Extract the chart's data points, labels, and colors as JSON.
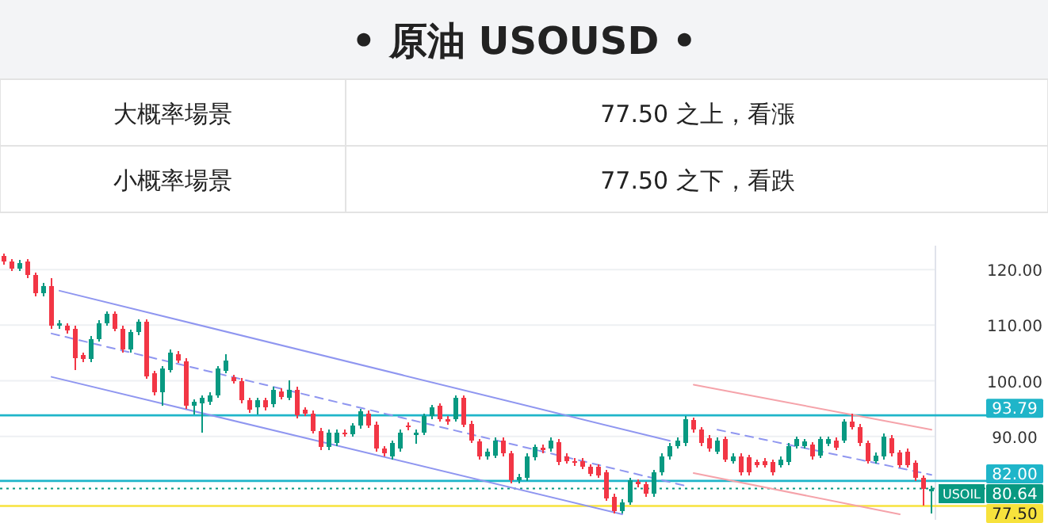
{
  "chart_data": {
    "type": "candlestick",
    "title": "• 原油 USOUSD •",
    "annotations": [
      "大概率場景",
      "77.50 之上，看漲",
      "小概率場景",
      "77.50 之下，看跌"
    ],
    "categories": [
      null,
      null,
      null,
      null,
      null,
      null,
      null,
      null,
      null,
      null,
      null,
      null,
      null,
      null,
      null,
      null,
      null,
      null,
      null,
      null,
      null,
      null,
      null,
      null,
      null,
      null,
      null,
      null,
      null,
      null,
      null,
      null,
      null,
      null,
      null,
      null,
      null,
      null,
      null,
      null,
      null,
      null,
      null,
      null,
      null,
      null,
      null,
      null,
      null,
      null,
      null,
      null,
      null,
      null,
      null,
      null,
      null,
      null,
      null,
      null,
      null,
      null,
      null,
      null,
      null,
      null,
      null,
      null,
      null,
      null,
      null,
      null,
      null,
      null,
      null,
      null,
      null,
      null,
      null,
      null,
      null,
      null,
      null,
      null,
      null,
      null,
      null,
      null,
      null,
      null,
      null,
      null,
      null,
      null,
      null,
      null,
      null,
      null,
      null,
      null,
      null,
      null,
      null,
      null,
      null,
      null,
      null,
      null,
      null,
      null,
      null,
      null,
      null,
      null,
      null,
      null,
      null,
      null
    ],
    "ohlc": [
      [
        122.4,
        122.9,
        120.9,
        121.4
      ],
      [
        121.4,
        121.9,
        119.7,
        120.2
      ],
      [
        120.2,
        121.7,
        119.7,
        121.2
      ],
      [
        121.4,
        121.9,
        118.5,
        119.0
      ],
      [
        119.0,
        119.5,
        115.2,
        115.7
      ],
      [
        115.7,
        117.6,
        115.2,
        117.1
      ],
      [
        117.1,
        118.4,
        109.4,
        109.9
      ],
      [
        109.9,
        110.9,
        109.4,
        110.4
      ],
      [
        109.9,
        110.4,
        108.5,
        109.0
      ],
      [
        109.4,
        109.9,
        102.0,
        104.1
      ],
      [
        104.6,
        105.1,
        103.4,
        103.9
      ],
      [
        103.9,
        108.0,
        103.4,
        107.5
      ],
      [
        107.5,
        110.9,
        107.0,
        110.4
      ],
      [
        110.4,
        112.5,
        109.9,
        112.0
      ],
      [
        112.0,
        112.5,
        108.9,
        109.4
      ],
      [
        109.4,
        109.9,
        105.1,
        105.6
      ],
      [
        105.6,
        109.2,
        105.1,
        108.7
      ],
      [
        108.7,
        111.1,
        108.2,
        110.6
      ],
      [
        110.6,
        111.1,
        100.3,
        100.8
      ],
      [
        101.3,
        101.8,
        97.4,
        97.9
      ],
      [
        97.9,
        102.7,
        95.5,
        102.2
      ],
      [
        102.0,
        105.6,
        101.5,
        105.1
      ],
      [
        104.8,
        105.3,
        103.2,
        103.7
      ],
      [
        103.5,
        104.0,
        95.0,
        95.5
      ],
      [
        95.5,
        96.7,
        94.0,
        96.2
      ],
      [
        96.0,
        97.4,
        90.7,
        96.9
      ],
      [
        96.2,
        97.9,
        95.7,
        97.4
      ],
      [
        97.4,
        102.7,
        96.9,
        102.2
      ],
      [
        101.8,
        104.8,
        101.3,
        103.7
      ],
      [
        100.6,
        101.1,
        99.5,
        100.0
      ],
      [
        100.0,
        100.5,
        96.0,
        96.5
      ],
      [
        96.5,
        97.0,
        94.3,
        94.8
      ],
      [
        95.2,
        97.0,
        94.0,
        96.5
      ],
      [
        96.5,
        97.0,
        94.7,
        95.2
      ],
      [
        95.8,
        98.9,
        95.3,
        98.4
      ],
      [
        98.1,
        98.6,
        96.6,
        97.1
      ],
      [
        97.0,
        100.1,
        96.5,
        98.4
      ],
      [
        98.4,
        98.9,
        93.3,
        93.8
      ],
      [
        94.8,
        95.3,
        93.6,
        94.1
      ],
      [
        94.1,
        94.6,
        90.5,
        91.0
      ],
      [
        91.0,
        91.5,
        87.6,
        88.1
      ],
      [
        88.1,
        91.2,
        87.6,
        90.7
      ],
      [
        88.8,
        91.2,
        88.3,
        90.7
      ],
      [
        90.7,
        91.2,
        89.9,
        90.4
      ],
      [
        90.4,
        92.4,
        89.9,
        91.9
      ],
      [
        91.9,
        95.0,
        91.4,
        94.5
      ],
      [
        94.1,
        94.6,
        91.5,
        92.0
      ],
      [
        92.1,
        92.6,
        87.3,
        87.8
      ],
      [
        87.8,
        88.3,
        86.4,
        86.9
      ],
      [
        86.4,
        89.3,
        85.9,
        88.8
      ],
      [
        87.8,
        91.2,
        87.3,
        90.7
      ],
      [
        92.0,
        92.5,
        91.1,
        91.6
      ],
      [
        90.2,
        91.2,
        88.7,
        90.7
      ],
      [
        90.7,
        94.1,
        90.2,
        93.6
      ],
      [
        93.6,
        95.7,
        93.1,
        95.2
      ],
      [
        95.5,
        96.0,
        92.6,
        93.1
      ],
      [
        93.1,
        93.6,
        92.1,
        92.6
      ],
      [
        93.1,
        97.4,
        92.6,
        96.9
      ],
      [
        96.9,
        97.4,
        91.6,
        92.1
      ],
      [
        92.3,
        92.8,
        88.8,
        89.3
      ],
      [
        89.1,
        89.6,
        85.9,
        86.4
      ],
      [
        86.4,
        87.8,
        85.9,
        87.3
      ],
      [
        86.6,
        89.8,
        86.1,
        89.3
      ],
      [
        89.3,
        89.8,
        86.4,
        86.9
      ],
      [
        86.9,
        87.4,
        81.6,
        82.1
      ],
      [
        82.1,
        83.2,
        81.6,
        82.7
      ],
      [
        82.5,
        86.9,
        82.0,
        86.4
      ],
      [
        86.2,
        88.6,
        85.7,
        88.1
      ],
      [
        88.0,
        88.5,
        87.0,
        87.5
      ],
      [
        87.8,
        89.8,
        87.3,
        89.3
      ],
      [
        89.0,
        89.5,
        84.9,
        85.4
      ],
      [
        86.4,
        86.9,
        85.1,
        85.6
      ],
      [
        85.6,
        86.1,
        84.7,
        85.2
      ],
      [
        85.6,
        86.1,
        84.1,
        84.6
      ],
      [
        84.5,
        85.0,
        82.8,
        83.3
      ],
      [
        84.5,
        85.0,
        82.5,
        83.0
      ],
      [
        83.5,
        84.0,
        78.4,
        78.9
      ],
      [
        79.2,
        79.7,
        76.1,
        76.6
      ],
      [
        76.6,
        78.7,
        76.1,
        78.2
      ],
      [
        78.2,
        82.6,
        77.7,
        82.1
      ],
      [
        81.8,
        82.3,
        80.9,
        81.4
      ],
      [
        81.4,
        81.9,
        79.2,
        79.7
      ],
      [
        79.7,
        84.0,
        79.2,
        83.5
      ],
      [
        83.5,
        86.9,
        83.0,
        86.4
      ],
      [
        86.4,
        88.8,
        85.9,
        88.3
      ],
      [
        88.3,
        89.8,
        87.8,
        89.3
      ],
      [
        88.8,
        93.6,
        88.3,
        93.1
      ],
      [
        92.9,
        93.4,
        90.7,
        91.2
      ],
      [
        91.2,
        91.7,
        88.3,
        88.8
      ],
      [
        89.7,
        90.2,
        87.3,
        87.8
      ],
      [
        87.3,
        89.8,
        86.8,
        89.3
      ],
      [
        89.5,
        90.0,
        85.4,
        85.9
      ],
      [
        85.6,
        86.9,
        85.1,
        86.4
      ],
      [
        86.4,
        86.9,
        83.0,
        83.5
      ],
      [
        86.2,
        86.7,
        83.0,
        83.5
      ],
      [
        85.4,
        85.9,
        84.4,
        84.9
      ],
      [
        85.6,
        86.1,
        84.4,
        84.9
      ],
      [
        85.4,
        85.9,
        83.0,
        83.5
      ],
      [
        84.9,
        86.4,
        84.4,
        85.9
      ],
      [
        85.4,
        88.8,
        84.9,
        88.3
      ],
      [
        88.3,
        90.0,
        87.8,
        89.5
      ],
      [
        88.3,
        89.6,
        87.8,
        89.1
      ],
      [
        88.5,
        89.0,
        85.9,
        86.4
      ],
      [
        86.6,
        90.0,
        86.1,
        89.5
      ],
      [
        88.7,
        90.0,
        88.2,
        89.5
      ],
      [
        89.3,
        89.8,
        87.5,
        88.0
      ],
      [
        89.3,
        93.1,
        88.8,
        92.6
      ],
      [
        92.6,
        94.1,
        91.2,
        91.7
      ],
      [
        91.7,
        92.2,
        88.3,
        88.8
      ],
      [
        88.8,
        89.3,
        85.1,
        85.6
      ],
      [
        85.6,
        87.1,
        85.1,
        86.6
      ],
      [
        86.4,
        90.5,
        85.9,
        90.0
      ],
      [
        89.7,
        90.2,
        86.4,
        86.9
      ],
      [
        87.1,
        87.6,
        84.4,
        84.9
      ],
      [
        87.3,
        87.8,
        84.4,
        84.9
      ],
      [
        85.2,
        85.7,
        82.0,
        82.5
      ],
      [
        82.5,
        83.0,
        77.6,
        80.6
      ],
      [
        80.2,
        81.1,
        76.1,
        80.6
      ]
    ],
    "series": [
      {
        "type": "line",
        "color": "#8f96f0",
        "line_style": "solid",
        "values": [
          null,
          null,
          null,
          null,
          null,
          null,
          null,
          116.2,
          null,
          null,
          null,
          null,
          null,
          null,
          null,
          null,
          null,
          null,
          null,
          null,
          null,
          null,
          null,
          null,
          null,
          null,
          null,
          null,
          null,
          null,
          null,
          null,
          null,
          null,
          null,
          null,
          null,
          null,
          null,
          null,
          null,
          null,
          null,
          null,
          null,
          null,
          null,
          null,
          null,
          null,
          null,
          null,
          null,
          null,
          null,
          null,
          null,
          null,
          null,
          null,
          null,
          null,
          null,
          null,
          null,
          null,
          null,
          null,
          null,
          null,
          null,
          null,
          null,
          null,
          null,
          null,
          null,
          null,
          null,
          null,
          null,
          null,
          null,
          null,
          89.2,
          null,
          null,
          null,
          null,
          null,
          null,
          null,
          null,
          null,
          null,
          null,
          null,
          null,
          null,
          null,
          null,
          null,
          null,
          null,
          null,
          null,
          null,
          null,
          null,
          null,
          null,
          null,
          null,
          null,
          null,
          null,
          null,
          null
        ]
      },
      {
        "type": "line",
        "color": "#8f96f0",
        "line_style": "dashed",
        "values": [
          null,
          null,
          null,
          null,
          null,
          null,
          108.5,
          null,
          null,
          null,
          null,
          null,
          null,
          null,
          null,
          null,
          null,
          null,
          null,
          null,
          null,
          null,
          null,
          null,
          null,
          null,
          null,
          null,
          null,
          null,
          null,
          null,
          null,
          null,
          null,
          null,
          null,
          null,
          null,
          null,
          null,
          null,
          null,
          null,
          null,
          null,
          null,
          null,
          null,
          null,
          null,
          null,
          null,
          null,
          null,
          null,
          null,
          null,
          null,
          null,
          null,
          null,
          null,
          null,
          null,
          null,
          null,
          null,
          null,
          null,
          null,
          null,
          null,
          null,
          null,
          null,
          null,
          null,
          null,
          null,
          null,
          null,
          null,
          null,
          null,
          null,
          81.1,
          null,
          null,
          null,
          null,
          null,
          null,
          null,
          null,
          null,
          null,
          null,
          null,
          null,
          null,
          null,
          null,
          null,
          null,
          null,
          null,
          null,
          null,
          null,
          null,
          null,
          null,
          null,
          null,
          null,
          null,
          null
        ]
      },
      {
        "type": "line",
        "color": "#8f96f0",
        "line_style": "solid",
        "values": [
          null,
          null,
          null,
          null,
          null,
          null,
          100.7,
          null,
          null,
          null,
          null,
          null,
          null,
          null,
          null,
          null,
          null,
          null,
          null,
          null,
          null,
          null,
          null,
          null,
          null,
          null,
          null,
          null,
          null,
          null,
          null,
          null,
          null,
          null,
          null,
          null,
          null,
          null,
          null,
          null,
          null,
          null,
          null,
          null,
          null,
          null,
          null,
          null,
          null,
          null,
          null,
          null,
          null,
          null,
          null,
          null,
          null,
          null,
          null,
          null,
          null,
          null,
          null,
          null,
          null,
          null,
          null,
          null,
          null,
          null,
          null,
          null,
          null,
          null,
          null,
          null,
          null,
          null,
          76.0,
          null,
          null,
          null,
          null,
          null,
          null,
          null,
          null,
          null,
          null,
          null,
          null,
          null,
          null,
          null,
          null,
          null,
          null,
          null,
          null,
          null,
          null,
          null,
          null,
          null,
          null,
          null,
          null,
          null,
          null,
          null,
          null,
          null,
          null,
          null,
          null,
          null,
          null,
          null
        ]
      },
      {
        "type": "line",
        "color": "#f5a3aa",
        "line_style": "solid",
        "values": [
          null,
          null,
          null,
          null,
          null,
          null,
          null,
          null,
          null,
          null,
          null,
          null,
          null,
          null,
          null,
          null,
          null,
          null,
          null,
          null,
          null,
          null,
          null,
          null,
          null,
          null,
          null,
          null,
          null,
          null,
          null,
          null,
          null,
          null,
          null,
          null,
          null,
          null,
          null,
          null,
          null,
          null,
          null,
          null,
          null,
          null,
          null,
          null,
          null,
          null,
          null,
          null,
          null,
          null,
          null,
          null,
          null,
          null,
          null,
          null,
          null,
          null,
          null,
          null,
          null,
          null,
          null,
          null,
          null,
          null,
          null,
          null,
          null,
          null,
          null,
          null,
          null,
          null,
          null,
          null,
          null,
          null,
          null,
          null,
          null,
          null,
          null,
          99.3,
          null,
          null,
          null,
          null,
          null,
          null,
          null,
          null,
          null,
          null,
          null,
          null,
          null,
          null,
          null,
          null,
          null,
          null,
          null,
          null,
          null,
          null,
          null,
          null,
          null,
          null,
          null,
          null,
          null,
          91.2
        ]
      },
      {
        "type": "line",
        "color": "#8f96f0",
        "line_style": "dashed",
        "values": [
          null,
          null,
          null,
          null,
          null,
          null,
          null,
          null,
          null,
          null,
          null,
          null,
          null,
          null,
          null,
          null,
          null,
          null,
          null,
          null,
          null,
          null,
          null,
          null,
          null,
          null,
          null,
          null,
          null,
          null,
          null,
          null,
          null,
          null,
          null,
          null,
          null,
          null,
          null,
          null,
          null,
          null,
          null,
          null,
          null,
          null,
          null,
          null,
          null,
          null,
          null,
          null,
          null,
          null,
          null,
          null,
          null,
          null,
          null,
          null,
          null,
          null,
          null,
          null,
          null,
          null,
          null,
          null,
          null,
          null,
          null,
          null,
          null,
          null,
          null,
          null,
          null,
          null,
          null,
          null,
          null,
          null,
          null,
          null,
          null,
          null,
          null,
          null,
          null,
          null,
          91.2,
          null,
          null,
          null,
          null,
          null,
          null,
          null,
          null,
          null,
          null,
          null,
          null,
          null,
          null,
          null,
          null,
          null,
          null,
          null,
          null,
          null,
          null,
          null,
          null,
          null,
          null,
          83.1
        ]
      },
      {
        "type": "line",
        "color": "#f5a3aa",
        "line_style": "solid",
        "values": [
          null,
          null,
          null,
          null,
          null,
          null,
          null,
          null,
          null,
          null,
          null,
          null,
          null,
          null,
          null,
          null,
          null,
          null,
          null,
          null,
          null,
          null,
          null,
          null,
          null,
          null,
          null,
          null,
          null,
          null,
          null,
          null,
          null,
          null,
          null,
          null,
          null,
          null,
          null,
          null,
          null,
          null,
          null,
          null,
          null,
          null,
          null,
          null,
          null,
          null,
          null,
          null,
          null,
          null,
          null,
          null,
          null,
          null,
          null,
          null,
          null,
          null,
          null,
          null,
          null,
          null,
          null,
          null,
          null,
          null,
          null,
          null,
          null,
          null,
          null,
          null,
          null,
          null,
          null,
          null,
          null,
          null,
          null,
          null,
          null,
          null,
          null,
          83.4,
          null,
          null,
          null,
          null,
          null,
          null,
          null,
          null,
          null,
          null,
          null,
          null,
          null,
          null,
          null,
          null,
          null,
          null,
          null,
          null,
          null,
          null,
          null,
          null,
          null,
          76.0,
          null,
          null,
          null,
          null
        ]
      }
    ],
    "ref_lines": [
      {
        "axis": "y",
        "value": 93.79,
        "label": "93.79",
        "color": "#1fb5c9",
        "line_style": "solid"
      },
      {
        "axis": "y",
        "value": 82,
        "label": "82.00",
        "color": "#1fb5c9",
        "line_style": "solid"
      },
      {
        "axis": "y",
        "value": 80.64,
        "label": "USOIL 80.64",
        "color": "#089981",
        "line_style": "dotted"
      },
      {
        "axis": "y",
        "value": 77.5,
        "label": "77.50",
        "color": "#f7e23c",
        "line_style": "solid"
      }
    ],
    "ylim": [
      75,
      124.3
    ],
    "yticks": [
      {
        "value": 90,
        "label": "90.00"
      },
      {
        "value": 100,
        "label": "100.00"
      },
      {
        "value": 110,
        "label": "110.00"
      },
      {
        "value": 120,
        "label": "120.00"
      }
    ],
    "grid": "y",
    "tick_labels": "y"
  }
}
